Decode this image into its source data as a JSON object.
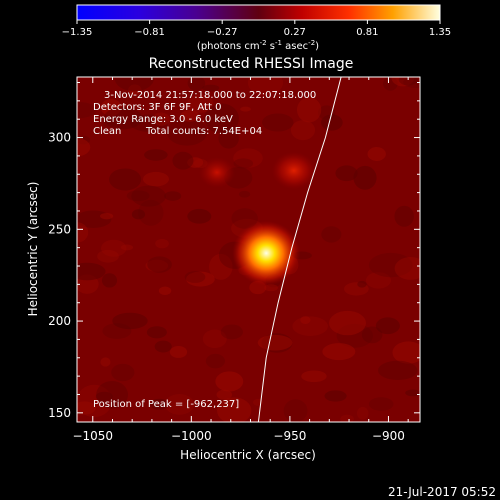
{
  "colorbar": {
    "ticks": [
      "-1.35",
      "-0.81",
      "-0.27",
      "0.27",
      "0.81",
      "1.35"
    ],
    "unit_main": "(photons cm",
    "unit_sup1": "-2",
    "unit_mid": " s",
    "unit_sup2": "-1",
    "unit_end": " asec",
    "unit_sup3": "-2",
    "unit_close": ")",
    "range": [
      -1.35,
      1.35
    ]
  },
  "title": "Reconstructed RHESSI Image",
  "info": {
    "line1": "3-Nov-2014 21:57:18.000 to 22:07:18.000",
    "line2": "Detectors: 3F 6F 9F, Att 0",
    "line3": "Energy Range: 3.0 - 6.0 keV",
    "line4_a": "Clean",
    "line4_b": "Total counts: 7.54E+04"
  },
  "peak_label": "Position of Peak = [-962,237]",
  "footer_timestamp": "21-Jul-2017 05:52",
  "colors": {
    "limb": "#ffffff",
    "background": "#000000",
    "map_base": "#7a0000"
  },
  "chart_data": {
    "type": "heatmap",
    "title": "Reconstructed RHESSI Image",
    "xlabel": "Heliocentric X (arcsec)",
    "ylabel": "Heliocentric Y (arcsec)",
    "xlim": [
      -1058,
      -884
    ],
    "ylim": [
      145,
      333
    ],
    "xticks": [
      -1050,
      -1000,
      -950,
      -900
    ],
    "yticks": [
      150,
      200,
      250,
      300
    ],
    "xtick_labels": [
      "−1050",
      "−1000",
      "−950",
      "−900"
    ],
    "ytick_labels": [
      "150",
      "200",
      "250",
      "300"
    ],
    "peak": {
      "x": -962,
      "y": 237,
      "value": 1.35
    },
    "sources": [
      {
        "x": -962,
        "y": 237,
        "value": 1.35
      },
      {
        "x": -948,
        "y": 282,
        "value": 0.55
      },
      {
        "x": -987,
        "y": 281,
        "value": 0.45
      }
    ],
    "limb_curve": [
      {
        "x": -924,
        "y": 333
      },
      {
        "x": -932,
        "y": 300
      },
      {
        "x": -941,
        "y": 270
      },
      {
        "x": -949,
        "y": 240
      },
      {
        "x": -956,
        "y": 210
      },
      {
        "x": -962,
        "y": 180
      },
      {
        "x": -966,
        "y": 145
      }
    ]
  }
}
